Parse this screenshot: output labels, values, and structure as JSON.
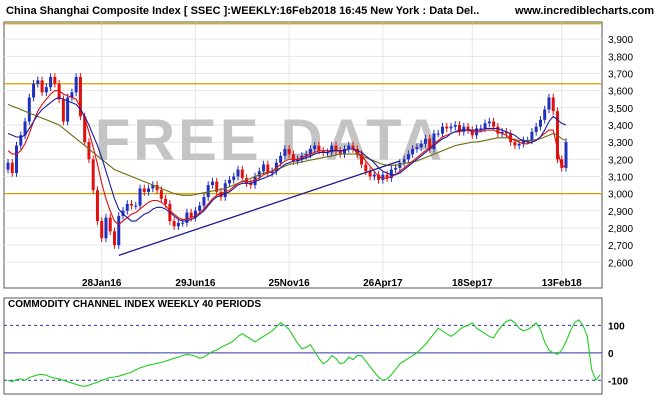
{
  "header": {
    "title": "China Shanghai Composite Index [ SSEC ]:WEEKLY:16Feb2018 16:45 New York : Data Del..",
    "site": "www.incrediblecharts.com"
  },
  "watermark": "FREE DATA",
  "colors": {
    "candle_up": "#1f2fbf",
    "candle_down": "#e01010",
    "ma_short": "#1a1aa0",
    "ma_fast": "#e01010",
    "ma_long": "#6b6b10",
    "trendline": "#1c1c8c",
    "level_line": "#d4a000",
    "cci": "#22cc22",
    "guide": "#3333aa",
    "grid": "#e6e6e6",
    "watermark": "#c4c4c4"
  },
  "chart_data": [
    {
      "type": "candlestick",
      "title": "China Shanghai Composite Index [ SSEC ]:WEEKLY:16Feb2018 16:45 New York : Data Del..",
      "ylim": [
        2450,
        4000
      ],
      "yticks": [
        2600,
        2700,
        2800,
        2900,
        3000,
        3100,
        3200,
        3300,
        3400,
        3500,
        3600,
        3700,
        3800,
        3900
      ],
      "x_tick_labels": [
        {
          "label": "28Jan16",
          "week": 22
        },
        {
          "label": "29Jun16",
          "week": 44
        },
        {
          "label": "25Nov16",
          "week": 66
        },
        {
          "label": "26Apr17",
          "week": 88
        },
        {
          "label": "18Sep17",
          "week": 109
        },
        {
          "label": "13Feb18",
          "week": 130
        }
      ],
      "grid": true,
      "close": [
        3180,
        3120,
        3280,
        3340,
        3420,
        3560,
        3640,
        3660,
        3590,
        3620,
        3680,
        3640,
        3550,
        3420,
        3560,
        3590,
        3680,
        3450,
        3300,
        3200,
        3020,
        2840,
        2740,
        2860,
        2780,
        2700,
        2870,
        2900,
        2940,
        2930,
        2930,
        3030,
        3010,
        3030,
        3050,
        3020,
        2970,
        2940,
        2840,
        2810,
        2830,
        2830,
        2890,
        2860,
        2900,
        2930,
        2980,
        3050,
        3070,
        3010,
        2980,
        3060,
        3080,
        3100,
        3140,
        3090,
        3060,
        3050,
        3100,
        3130,
        3170,
        3120,
        3130,
        3180,
        3220,
        3260,
        3230,
        3190,
        3200,
        3220,
        3230,
        3260,
        3280,
        3250,
        3240,
        3240,
        3280,
        3250,
        3230,
        3260,
        3280,
        3260,
        3230,
        3170,
        3130,
        3100,
        3110,
        3080,
        3110,
        3090,
        3140,
        3150,
        3180,
        3200,
        3230,
        3260,
        3270,
        3290,
        3320,
        3260,
        3350,
        3350,
        3390,
        3380,
        3390,
        3400,
        3360,
        3390,
        3370,
        3340,
        3380,
        3380,
        3410,
        3420,
        3390,
        3350,
        3360,
        3350,
        3300,
        3280,
        3290,
        3310,
        3310,
        3360,
        3390,
        3430,
        3490,
        3560,
        3480,
        3200,
        3150,
        3300
      ],
      "ma_short": [
        3350,
        3340,
        3330,
        3330,
        3340,
        3380,
        3420,
        3460,
        3490,
        3510,
        3530,
        3550,
        3560,
        3550,
        3540,
        3530,
        3520,
        3490,
        3450,
        3400,
        3340,
        3280,
        3210,
        3130,
        3050,
        2970,
        2910,
        2880,
        2860,
        2840,
        2840,
        2860,
        2880,
        2890,
        2910,
        2920,
        2920,
        2910,
        2890,
        2870,
        2850,
        2840,
        2840,
        2850,
        2860,
        2880,
        2900,
        2930,
        2960,
        2980,
        2990,
        3000,
        3010,
        3030,
        3050,
        3060,
        3060,
        3060,
        3070,
        3080,
        3090,
        3100,
        3110,
        3130,
        3150,
        3170,
        3180,
        3190,
        3190,
        3200,
        3210,
        3220,
        3230,
        3240,
        3240,
        3240,
        3250,
        3250,
        3250,
        3250,
        3260,
        3260,
        3250,
        3240,
        3220,
        3200,
        3180,
        3150,
        3130,
        3120,
        3110,
        3110,
        3120,
        3140,
        3160,
        3180,
        3200,
        3220,
        3240,
        3260,
        3280,
        3300,
        3320,
        3330,
        3350,
        3360,
        3370,
        3370,
        3370,
        3370,
        3370,
        3370,
        3380,
        3380,
        3380,
        3380,
        3370,
        3360,
        3350,
        3340,
        3320,
        3310,
        3300,
        3300,
        3310,
        3330,
        3370,
        3420,
        3450,
        3430,
        3410,
        3400
      ],
      "ma_fast": [
        3250,
        3230,
        3230,
        3250,
        3290,
        3350,
        3420,
        3480,
        3520,
        3550,
        3580,
        3600,
        3600,
        3580,
        3570,
        3560,
        3550,
        3500,
        3440,
        3360,
        3270,
        3170,
        3060,
        2970,
        2900,
        2840,
        2820,
        2840,
        2860,
        2880,
        2890,
        2910,
        2930,
        2950,
        2960,
        2960,
        2950,
        2930,
        2900,
        2880,
        2860,
        2850,
        2850,
        2860,
        2870,
        2890,
        2910,
        2940,
        2970,
        2990,
        3000,
        3010,
        3020,
        3040,
        3060,
        3070,
        3070,
        3070,
        3080,
        3090,
        3110,
        3120,
        3130,
        3150,
        3170,
        3190,
        3200,
        3200,
        3200,
        3210,
        3220,
        3230,
        3240,
        3250,
        3250,
        3250,
        3250,
        3250,
        3250,
        3250,
        3260,
        3260,
        3240,
        3220,
        3190,
        3160,
        3130,
        3100,
        3090,
        3090,
        3100,
        3110,
        3130,
        3150,
        3170,
        3190,
        3210,
        3230,
        3250,
        3270,
        3290,
        3310,
        3330,
        3340,
        3350,
        3360,
        3360,
        3370,
        3370,
        3360,
        3360,
        3360,
        3370,
        3370,
        3370,
        3360,
        3350,
        3340,
        3320,
        3310,
        3300,
        3290,
        3290,
        3300,
        3310,
        3330,
        3350,
        3370,
        3370,
        3260,
        3150,
        3170
      ],
      "ma_long": [
        3520,
        3510,
        3500,
        3490,
        3480,
        3470,
        3460,
        3450,
        3440,
        3430,
        3420,
        3410,
        3400,
        3380,
        3360,
        3340,
        3320,
        3300,
        3280,
        3260,
        3240,
        3220,
        3200,
        3180,
        3160,
        3140,
        3130,
        3120,
        3110,
        3100,
        3090,
        3080,
        3070,
        3060,
        3050,
        3040,
        3030,
        3020,
        3010,
        3000,
        2995,
        2990,
        2990,
        2990,
        2995,
        3000,
        3005,
        3010,
        3015,
        3020,
        3025,
        3030,
        3040,
        3050,
        3060,
        3070,
        3080,
        3090,
        3100,
        3110,
        3120,
        3125,
        3130,
        3140,
        3150,
        3160,
        3170,
        3175,
        3180,
        3185,
        3190,
        3195,
        3200,
        3205,
        3210,
        3215,
        3220,
        3225,
        3230,
        3230,
        3230,
        3230,
        3230,
        3220,
        3210,
        3200,
        3190,
        3180,
        3170,
        3165,
        3165,
        3165,
        3170,
        3175,
        3180,
        3185,
        3190,
        3200,
        3210,
        3220,
        3230,
        3240,
        3250,
        3260,
        3270,
        3280,
        3285,
        3290,
        3295,
        3300,
        3300,
        3305,
        3310,
        3315,
        3320,
        3325,
        3325,
        3325,
        3320,
        3315,
        3310,
        3310,
        3310,
        3310,
        3315,
        3320,
        3330,
        3340,
        3350,
        3340,
        3320,
        3310
      ],
      "trendline": {
        "from_week": 26,
        "from_value": 2640,
        "to_week": 92,
        "to_value": 3190
      },
      "level_lines": [
        3990,
        3640,
        3000
      ]
    },
    {
      "type": "line",
      "title": "COMMODITY CHANNEL INDEX WEEKLY 40 PERIODS",
      "ylim": [
        -150,
        200
      ],
      "yticks": [
        100,
        0,
        -100
      ],
      "guide_levels": [
        100,
        0,
        -100
      ],
      "series": [
        {
          "values": [
            -100,
            -105,
            -98,
            -95,
            -100,
            -90,
            -85,
            -80,
            -78,
            -82,
            -88,
            -92,
            -95,
            -100,
            -105,
            -110,
            -115,
            -120,
            -122,
            -118,
            -112,
            -108,
            -100,
            -95,
            -90,
            -88,
            -85,
            -80,
            -75,
            -70,
            -62,
            -55,
            -50,
            -45,
            -42,
            -38,
            -35,
            -30,
            -25,
            -20,
            -15,
            -10,
            -5,
            -8,
            -12,
            -20,
            -15,
            -5,
            5,
            10,
            20,
            28,
            35,
            45,
            60,
            70,
            60,
            50,
            40,
            50,
            60,
            70,
            80,
            95,
            110,
            100,
            85,
            60,
            35,
            15,
            20,
            30,
            5,
            -20,
            -40,
            -30,
            -10,
            -20,
            -40,
            -35,
            -15,
            -25,
            -10,
            -10,
            -30,
            -50,
            -70,
            -90,
            -100,
            -95,
            -80,
            -60,
            -40,
            -30,
            -20,
            -10,
            0,
            15,
            30,
            50,
            70,
            90,
            80,
            70,
            60,
            70,
            85,
            95,
            100,
            110,
            90,
            80,
            70,
            60,
            55,
            80,
            100,
            115,
            120,
            110,
            90,
            80,
            85,
            95,
            110,
            85,
            40,
            10,
            0,
            -5,
            10,
            40,
            80,
            110,
            120,
            100,
            60,
            -60,
            -100,
            -80
          ]
        }
      ]
    }
  ]
}
